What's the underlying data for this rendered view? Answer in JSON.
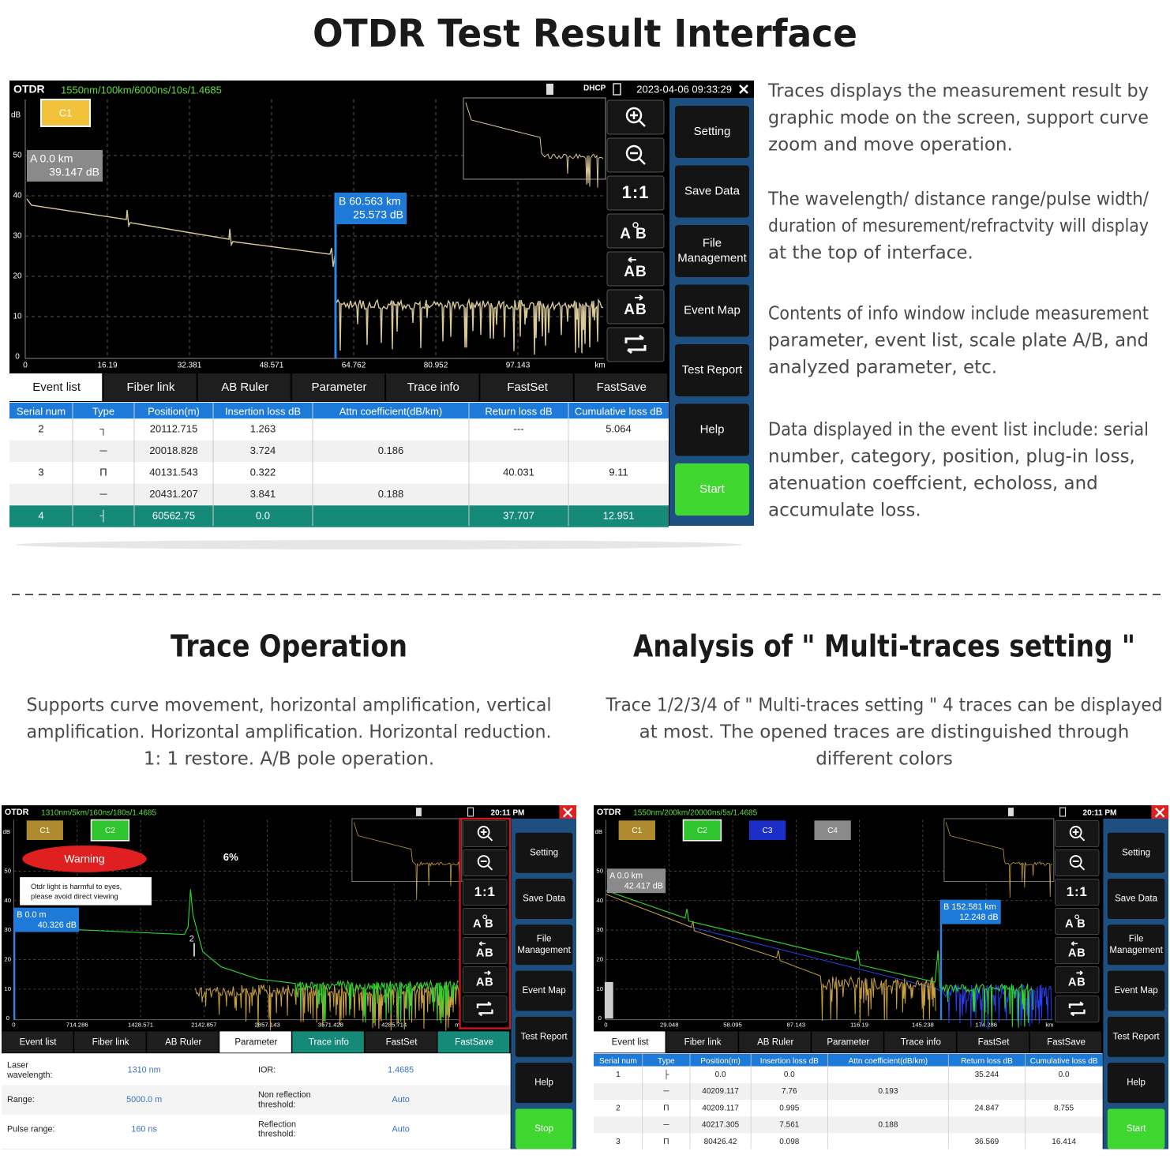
{
  "title": "OTDR Test Result Interface",
  "main_screen": {
    "app": "OTDR",
    "params": "1550nm/100km/6000ns/10s/1.4685",
    "net": "DHCP",
    "datetime": "2023-04-06 09:33:29",
    "traces": [
      "C1"
    ],
    "y_unit": "dB",
    "y_labels": [
      "50",
      "40",
      "30",
      "20",
      "10",
      "0"
    ],
    "x_labels": [
      "0",
      "16.19",
      "32.381",
      "48.571",
      "64.762",
      "80.952",
      "97.143",
      "km"
    ],
    "cursor_a": [
      "A 0.0 km",
      "39.147 dB"
    ],
    "cursor_b": [
      "B 60.563 km",
      "25.573 dB"
    ],
    "tool_text": [
      "1:1",
      "AB",
      "AB",
      "AB"
    ],
    "buttons": [
      [
        "Setting"
      ],
      [
        "Save Data"
      ],
      [
        "File",
        "Management"
      ],
      [
        "Event Map"
      ],
      [
        "Test Report"
      ],
      [
        "Help"
      ],
      [
        "Start"
      ]
    ],
    "tabs": [
      "Event list",
      "Fiber link",
      "AB Ruler",
      "Parameter",
      "Trace info",
      "FastSet",
      "FastSave"
    ],
    "table": {
      "header": [
        "Serial num",
        "Type",
        "Position(m)",
        "Insertion loss dB",
        "Attn coefficient(dB/km)",
        "Return loss dB",
        "Cumulative loss dB"
      ],
      "rows": [
        [
          "2",
          "┐",
          "20112.715",
          "1.263",
          null,
          "---",
          "5.064"
        ],
        [
          null,
          "─",
          "20018.828",
          "3.724",
          "0.186",
          null,
          null
        ],
        [
          "3",
          "Π",
          "40131.543",
          "0.322",
          null,
          "40.031",
          "9.11"
        ],
        [
          null,
          "─",
          "20431.207",
          "3.841",
          "0.188",
          null,
          null
        ],
        [
          "4",
          "┤",
          "60562.75",
          "0.0",
          null,
          "37.707",
          "12.951"
        ]
      ]
    }
  },
  "descriptions": [
    [
      "Traces displays the measurement result by",
      "graphic mode on the screen, support curve",
      "zoom and move operation."
    ],
    [
      "The wavelength/ distance range/pulse width/",
      "duration of mesurement/refractvity will display",
      "at the top of interface."
    ],
    [
      "Contents of info window include measurement",
      "parameter, event list, scale plate A/B, and",
      "analyzed parameter, etc."
    ],
    [
      "Data displayed in the event list include: serial",
      "number, category, position, plug-in loss,",
      "atenuation coeffcient, echoloss, and",
      "accumulate loss."
    ]
  ],
  "trace_operation": {
    "heading": "Trace Operation",
    "lines": [
      "Supports curve movement, horizontal amplification, vertical",
      "amplification. Horizontal amplification. Horizontal reduction.",
      "1: 1 restore. A/B pole operation."
    ]
  },
  "multi_traces": {
    "heading": "Analysis of \" Multi-traces setting \"",
    "lines": [
      "Trace 1/2/3/4 of \" Multi-traces setting \" 4 traces can be displayed",
      "at most. The opened traces are distinguished through",
      "different colors"
    ]
  },
  "left_screen": {
    "app": "OTDR",
    "params": "1310nm/5km/160ns/180s/1.4685",
    "time": "20:11 PM",
    "traces": [
      "C1",
      "C2"
    ],
    "y_unit": "dB",
    "y_labels": [
      "50",
      "40",
      "30",
      "20",
      "10",
      "0"
    ],
    "x_labels": [
      "0",
      "714.286",
      "1428.571",
      "2142.857",
      "2857.143",
      "3571.428",
      "4285.714",
      "m"
    ],
    "cursor_b": [
      "B 0.0 m",
      "40.326 dB"
    ],
    "warning": {
      "title": "Warning",
      "lines": [
        "Otdr light is harmful to eyes,",
        "please avoid direct viewing"
      ]
    },
    "progress": "6%",
    "event_marker": "2",
    "tool_text": [
      "1:1",
      "AB",
      "AB",
      "AB"
    ],
    "buttons": [
      [
        "Setting"
      ],
      [
        "Save Data"
      ],
      [
        "File",
        "Management"
      ],
      [
        "Event Map"
      ],
      [
        "Test Report"
      ],
      [
        "Help"
      ],
      [
        "Stop"
      ]
    ],
    "tabs": [
      "Event list",
      "Fiber link",
      "AB Ruler",
      "Parameter",
      "Trace info",
      "FastSet",
      "FastSave"
    ],
    "parameters": [
      [
        [
          "Laser",
          "wavelength:"
        ],
        "1310 nm",
        [
          "IOR:"
        ],
        "1.4685"
      ],
      [
        [
          "Range:"
        ],
        "5000.0 m",
        [
          "Non reflection",
          "threshold:"
        ],
        "Auto"
      ],
      [
        [
          "Pulse range:"
        ],
        "160 ns",
        [
          "Reflection",
          "threshold:"
        ],
        "Auto"
      ]
    ]
  },
  "right_screen": {
    "app": "OTDR",
    "params": "1550nm/200km/20000ns/5s/1.4685",
    "time": "20:11 PM",
    "traces": [
      "C1",
      "C2",
      "C3",
      "C4"
    ],
    "y_unit": "dB",
    "y_labels": [
      "50",
      "40",
      "30",
      "20",
      "10",
      "0"
    ],
    "x_labels": [
      "0",
      "29.048",
      "58.095",
      "87.143",
      "116.19",
      "145.238",
      "174.286",
      "km"
    ],
    "cursor_a": [
      "A 0.0 km",
      "42.417 dB"
    ],
    "cursor_b": [
      "B 152.581 km",
      "12.248 dB"
    ],
    "tool_text": [
      "1:1",
      "AB",
      "AB",
      "AB"
    ],
    "buttons": [
      [
        "Setting"
      ],
      [
        "Save Data"
      ],
      [
        "File",
        "Management"
      ],
      [
        "Event Map"
      ],
      [
        "Test Report"
      ],
      [
        "Help"
      ],
      [
        "Start"
      ]
    ],
    "tabs": [
      "Event list",
      "Fiber link",
      "AB Ruler",
      "Parameter",
      "Trace info",
      "FastSet",
      "FastSave"
    ],
    "table": {
      "header": [
        "Serial num",
        "Type",
        "Position(m)",
        "Insertion loss dB",
        "Attn coefficient(dB/km)",
        "Return loss dB",
        "Cumulative loss dB"
      ],
      "rows": [
        [
          "1",
          "├",
          "0.0",
          "0.0",
          null,
          "35.244",
          "0.0"
        ],
        [
          null,
          "─",
          "40209.117",
          "7.76",
          "0.193",
          null,
          null
        ],
        [
          "2",
          "Π",
          "40209.117",
          "0.995",
          null,
          "24.847",
          "8.755"
        ],
        [
          null,
          "─",
          "40217.305",
          "7.561",
          "0.188",
          null,
          null
        ],
        [
          "3",
          "Π",
          "80426.42",
          "0.098",
          null,
          "36.569",
          "16.414"
        ]
      ]
    }
  }
}
